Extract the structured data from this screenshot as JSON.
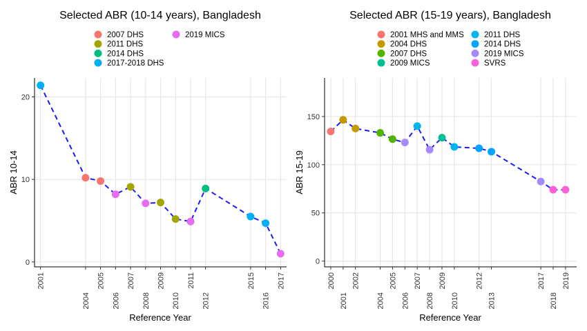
{
  "chart_data": [
    {
      "type": "scatter",
      "title": "Selected ABR (10-14 years), Bangladesh",
      "xlabel": "Reference Year",
      "ylabel": "ABR 10-14",
      "xlim": [
        2000.6,
        2017.4
      ],
      "ylim": [
        -0.6,
        22.3
      ],
      "y_ticks": [
        0,
        10,
        20
      ],
      "x_ticks": [
        2001,
        2004,
        2005,
        2006,
        2007,
        2008,
        2009,
        2010,
        2011,
        2012,
        2015,
        2016,
        2017
      ],
      "grid": true,
      "legend_position": "top",
      "trend_line": {
        "style": "dashed",
        "color": "#1a1aff"
      },
      "series": [
        {
          "name": "2007 DHS",
          "color": "#F8766D",
          "points": [
            [
              2004,
              10.2
            ],
            [
              2005,
              9.8
            ]
          ]
        },
        {
          "name": "2011 DHS",
          "color": "#A3A500",
          "points": [
            [
              2007,
              9.1
            ],
            [
              2009,
              7.2
            ],
            [
              2010,
              5.2
            ]
          ]
        },
        {
          "name": "2014 DHS",
          "color": "#00BF7D",
          "points": [
            [
              2012,
              8.9
            ]
          ]
        },
        {
          "name": "2017-2018 DHS",
          "color": "#00B0F6",
          "points": [
            [
              2001,
              21.4
            ],
            [
              2015,
              5.5
            ],
            [
              2016,
              4.7
            ]
          ]
        },
        {
          "name": "2019 MICS",
          "color": "#E76BF3",
          "points": [
            [
              2006,
              8.2
            ],
            [
              2008,
              7.1
            ],
            [
              2011,
              4.9
            ],
            [
              2017,
              1.0
            ]
          ]
        }
      ],
      "trend_points": [
        [
          2001,
          21.4
        ],
        [
          2004,
          10.2
        ],
        [
          2005,
          9.8
        ],
        [
          2006,
          8.2
        ],
        [
          2007,
          9.1
        ],
        [
          2008,
          7.1
        ],
        [
          2009,
          7.2
        ],
        [
          2010,
          5.2
        ],
        [
          2011,
          4.9
        ],
        [
          2012,
          8.9
        ],
        [
          2015,
          5.5
        ],
        [
          2016,
          4.7
        ],
        [
          2017,
          1.0
        ]
      ]
    },
    {
      "type": "scatter",
      "title": "Selected ABR (15-19 years), Bangladesh",
      "xlabel": "Reference Year",
      "ylabel": "ABR 15-19",
      "xlim": [
        1999.5,
        2019.9
      ],
      "ylim": [
        -6,
        190
      ],
      "y_ticks": [
        0,
        50,
        100,
        150
      ],
      "x_ticks": [
        2000,
        2001,
        2002,
        2004,
        2005,
        2006,
        2007,
        2008,
        2009,
        2010,
        2012,
        2013,
        2017,
        2018,
        2019
      ],
      "grid": true,
      "legend_position": "top",
      "trend_line": {
        "style": "dashed",
        "color": "#1a1aff"
      },
      "series": [
        {
          "name": "2001 MHS and MMS",
          "color": "#F8766D",
          "points": [
            [
              2000,
              134.5
            ]
          ]
        },
        {
          "name": "2004 DHS",
          "color": "#C49A00",
          "points": [
            [
              2001,
              146.5
            ],
            [
              2002,
              137.5
            ]
          ]
        },
        {
          "name": "2007 DHS",
          "color": "#53B400",
          "points": [
            [
              2004,
              133.0
            ],
            [
              2005,
              126.5
            ]
          ]
        },
        {
          "name": "2009 MICS",
          "color": "#00C094",
          "points": [
            [
              2009,
              128.0
            ]
          ]
        },
        {
          "name": "2011 DHS",
          "color": "#00B6EB",
          "points": [
            [
              2007,
              140.0
            ],
            [
              2010,
              118.5
            ]
          ]
        },
        {
          "name": "2014 DHS",
          "color": "#06A4FF",
          "points": [
            [
              2012,
              117.0
            ],
            [
              2013,
              113.5
            ]
          ]
        },
        {
          "name": "2019 MICS",
          "color": "#A58AFF",
          "points": [
            [
              2006,
              123.0
            ],
            [
              2008,
              115.5
            ],
            [
              2017,
              82.5
            ]
          ]
        },
        {
          "name": "SVRS",
          "color": "#FB61D7",
          "points": [
            [
              2018,
              74.0
            ],
            [
              2019,
              74.0
            ]
          ]
        }
      ],
      "trend_points": [
        [
          2000,
          134.5
        ],
        [
          2001,
          146.5
        ],
        [
          2002,
          137.5
        ],
        [
          2004,
          133.0
        ],
        [
          2005,
          126.5
        ],
        [
          2006,
          123.0
        ],
        [
          2007,
          140.0
        ],
        [
          2008,
          115.5
        ],
        [
          2009,
          128.0
        ],
        [
          2010,
          118.5
        ],
        [
          2012,
          117.0
        ],
        [
          2013,
          113.5
        ],
        [
          2017,
          82.5
        ],
        [
          2018,
          74.0
        ],
        [
          2019,
          74.0
        ]
      ]
    }
  ]
}
